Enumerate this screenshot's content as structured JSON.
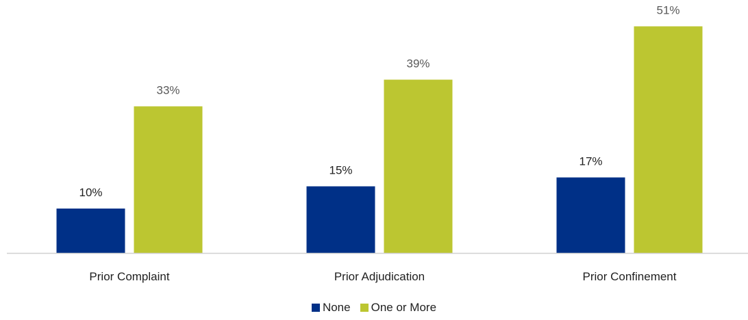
{
  "chart_data": {
    "type": "bar",
    "title": "",
    "xlabel": "",
    "ylabel": "",
    "ylim": [
      0,
      55
    ],
    "grid": false,
    "legend_position": "bottom",
    "categories": [
      "Prior Complaint",
      "Prior Adjudication",
      "Prior Confinement"
    ],
    "series": [
      {
        "name": "None",
        "color": "#003087",
        "label_color": "#1f1f1f",
        "values": [
          10,
          15,
          17
        ],
        "labels": [
          "10%",
          "15%",
          "17%"
        ]
      },
      {
        "name": "One or More",
        "color": "#bcc631",
        "label_color": "#595959",
        "values": [
          33,
          39,
          51
        ],
        "labels": [
          "33%",
          "39%",
          "51%"
        ]
      }
    ]
  },
  "legend": {
    "items": [
      {
        "label": "None",
        "color": "#003087"
      },
      {
        "label": "One or More",
        "color": "#bcc631"
      }
    ]
  }
}
